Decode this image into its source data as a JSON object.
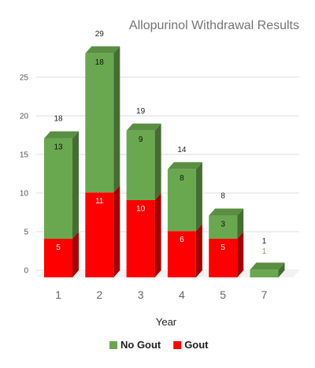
{
  "chart_data": {
    "type": "bar",
    "stacked": true,
    "style": "3d",
    "title": "Allopurinol Withdrawal Results",
    "xlabel": "Year",
    "ylabel": "",
    "categories": [
      "1",
      "2",
      "3",
      "4",
      "5",
      "7"
    ],
    "series": [
      {
        "name": "Gout",
        "color": "#ff0000",
        "values": [
          5,
          11,
          10,
          6,
          5,
          0
        ]
      },
      {
        "name": "No Gout",
        "color": "#6aa84f",
        "values": [
          13,
          18,
          9,
          8,
          3,
          1
        ]
      }
    ],
    "totals": [
      18,
      29,
      19,
      14,
      8,
      1
    ],
    "ylim": [
      0,
      30
    ],
    "yticks": [
      0,
      5,
      10,
      15,
      20,
      25
    ],
    "grid": true,
    "legend_position": "bottom"
  }
}
